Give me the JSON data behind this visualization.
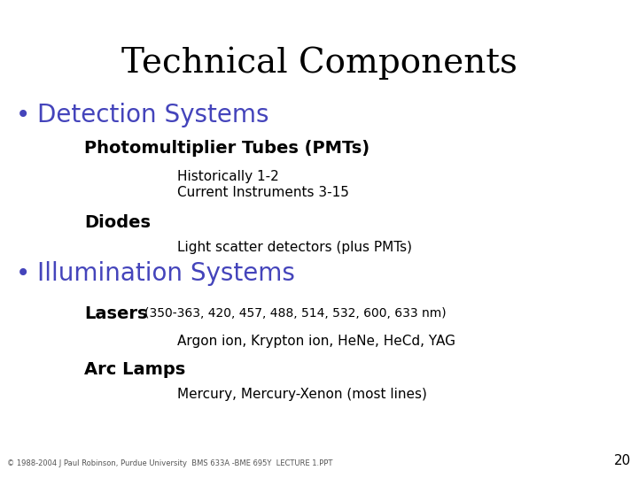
{
  "title": "Technical Components",
  "title_fontsize": 28,
  "title_color": "#000000",
  "bg_color": "#ffffff",
  "bullet_color": "#4444bb",
  "bullet1": "Detection Systems",
  "bullet1_fontsize": 20,
  "bullet2": "Illumination Systems",
  "bullet2_fontsize": 20,
  "sub1_label": "Photomultiplier Tubes (PMTs)",
  "sub1_fontsize": 14,
  "sub1a_text": "Historically 1-2",
  "sub1b_text": "Current Instruments 3-15",
  "sub1ab_fontsize": 11,
  "sub2_label": "Diodes",
  "sub2_fontsize": 14,
  "sub2a_text": "Light scatter detectors (plus PMTs)",
  "sub2a_fontsize": 11,
  "sub3_label": "Lasers",
  "sub3_label2": "(350-363, 420, 457, 488, 514, 532, 600, 633 nm)",
  "sub3_fontsize": 14,
  "sub3_label2_fontsize": 10,
  "sub3a_text": "Argon ion, Krypton ion, HeNe, HeCd, YAG",
  "sub3a_fontsize": 11,
  "sub4_label": "Arc Lamps",
  "sub4_fontsize": 14,
  "sub4a_text": "Mercury, Mercury-Xenon (most lines)",
  "sub4a_fontsize": 11,
  "footer_text": "© 1988-2004 J Paul Robinson, Purdue University  BMS 633A -BME 695Y  LECTURE 1.PPT",
  "footer_fontsize": 6,
  "page_num": "20",
  "page_num_fontsize": 11
}
